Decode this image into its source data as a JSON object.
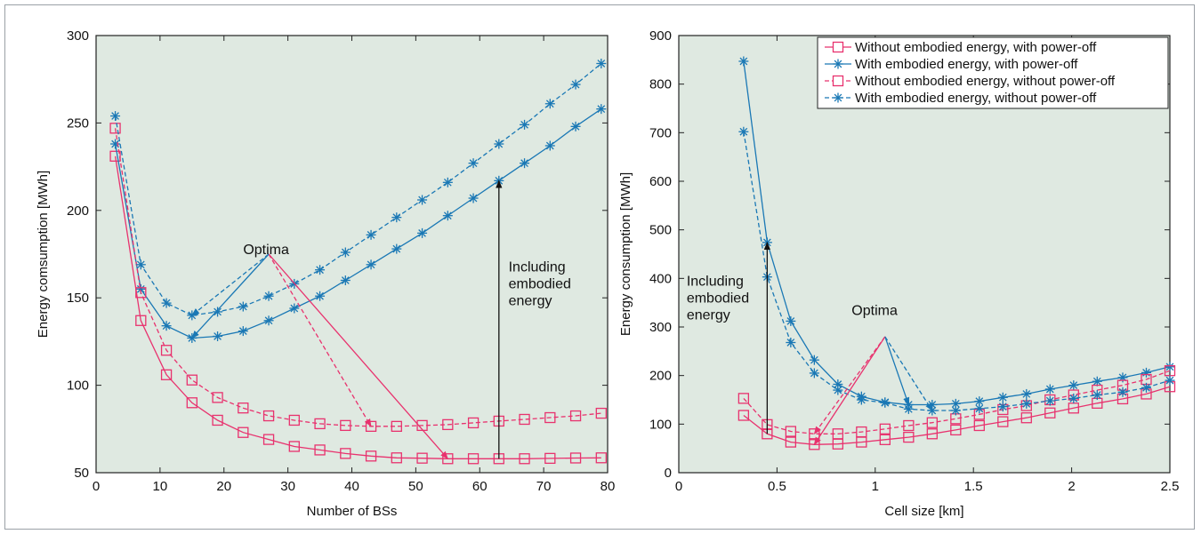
{
  "colors": {
    "red": "#e8326e",
    "blue": "#1a78b5",
    "plot_bg": "#dfe9e1",
    "axis": "#222222"
  },
  "chart_data": [
    {
      "type": "line",
      "xlabel": "Number of BSs",
      "ylabel": "Energy comsumption [MWh]",
      "xlim": [
        0,
        80
      ],
      "ylim": [
        50,
        300
      ],
      "xticks": [
        0,
        10,
        20,
        30,
        40,
        50,
        60,
        70,
        80
      ],
      "yticks": [
        50,
        100,
        150,
        200,
        250,
        300
      ],
      "grid": false,
      "legend": "none",
      "x": [
        3,
        7,
        11,
        15,
        19,
        23,
        27,
        31,
        35,
        39,
        43,
        47,
        51,
        55,
        59,
        63,
        67,
        71,
        75,
        79
      ],
      "series": [
        {
          "color": "red",
          "dash": false,
          "marker": "square",
          "values": [
            231,
            137,
            106,
            90,
            80,
            73,
            69,
            65,
            63,
            61,
            59.5,
            58.5,
            58.3,
            58,
            58,
            58,
            58,
            58.2,
            58.4,
            58.5
          ]
        },
        {
          "color": "blue",
          "dash": false,
          "marker": "asterisk",
          "values": [
            238,
            155,
            134,
            127,
            128,
            131,
            137,
            144,
            151,
            160,
            169,
            178,
            187,
            197,
            207,
            217,
            227,
            237,
            248,
            258
          ]
        },
        {
          "color": "red",
          "dash": true,
          "marker": "square",
          "values": [
            247,
            153,
            120,
            103,
            93,
            87,
            82.5,
            80,
            78,
            77,
            76.5,
            76.5,
            77,
            77.5,
            78.5,
            79.5,
            80.5,
            81.5,
            82.5,
            84
          ]
        },
        {
          "color": "blue",
          "dash": true,
          "marker": "asterisk",
          "values": [
            254,
            169,
            147,
            140,
            142,
            145,
            151,
            158,
            166,
            176,
            186,
            196,
            206,
            216,
            227,
            238,
            249,
            261,
            272,
            284
          ]
        }
      ],
      "annotations": [
        {
          "id": "optima",
          "text": [
            "Optima"
          ],
          "x": 23,
          "y": 175
        },
        {
          "id": "including",
          "text": [
            "Including",
            "embodied",
            "energy"
          ],
          "x": 64.5,
          "y": 165
        }
      ]
    },
    {
      "type": "line",
      "xlabel": "Cell size [km]",
      "ylabel": "Energy consumption [MWh]",
      "xlim": [
        0,
        2.5
      ],
      "ylim": [
        0,
        900
      ],
      "xticks": [
        0,
        0.5,
        1,
        1.5,
        2,
        2.5
      ],
      "yticks": [
        0,
        100,
        200,
        300,
        400,
        500,
        600,
        700,
        800,
        900
      ],
      "grid": false,
      "legend": "top-right",
      "x": [
        0.33,
        0.45,
        0.57,
        0.69,
        0.81,
        0.93,
        1.05,
        1.17,
        1.29,
        1.41,
        1.53,
        1.65,
        1.77,
        1.89,
        2.01,
        2.13,
        2.26,
        2.38,
        2.5
      ],
      "series": [
        {
          "name": "Without embodied energy, with power-off",
          "color": "red",
          "dash": false,
          "marker": "square",
          "values": [
            118,
            80,
            63,
            58,
            59,
            63,
            68,
            73,
            80,
            88,
            97,
            105,
            113,
            123,
            133,
            143,
            152,
            162,
            177
          ]
        },
        {
          "name": "With embodied energy, with power-off",
          "color": "blue",
          "dash": false,
          "marker": "asterisk",
          "values": [
            847,
            474,
            312,
            232,
            182,
            157,
            145,
            140,
            140,
            142,
            147,
            155,
            162,
            172,
            180,
            188,
            196,
            206,
            218
          ]
        },
        {
          "name": "Without embodied energy, without power-off",
          "color": "red",
          "dash": true,
          "marker": "square",
          "values": [
            153,
            99,
            85,
            80,
            80,
            84,
            90,
            97,
            103,
            111,
            120,
            130,
            138,
            150,
            160,
            170,
            180,
            192,
            210
          ]
        },
        {
          "name": "With embodied energy, without power-off",
          "color": "blue",
          "dash": true,
          "marker": "asterisk",
          "values": [
            702,
            403,
            268,
            205,
            170,
            150,
            144,
            131,
            128,
            128,
            132,
            136,
            142,
            148,
            153,
            160,
            166,
            175,
            190
          ]
        }
      ],
      "annotations": [
        {
          "id": "optima",
          "text": [
            "Optima"
          ],
          "x": 0.88,
          "y": 325
        },
        {
          "id": "including",
          "text": [
            "Including",
            "embodied",
            "energy"
          ],
          "x": 0.04,
          "y": 385
        }
      ]
    }
  ]
}
